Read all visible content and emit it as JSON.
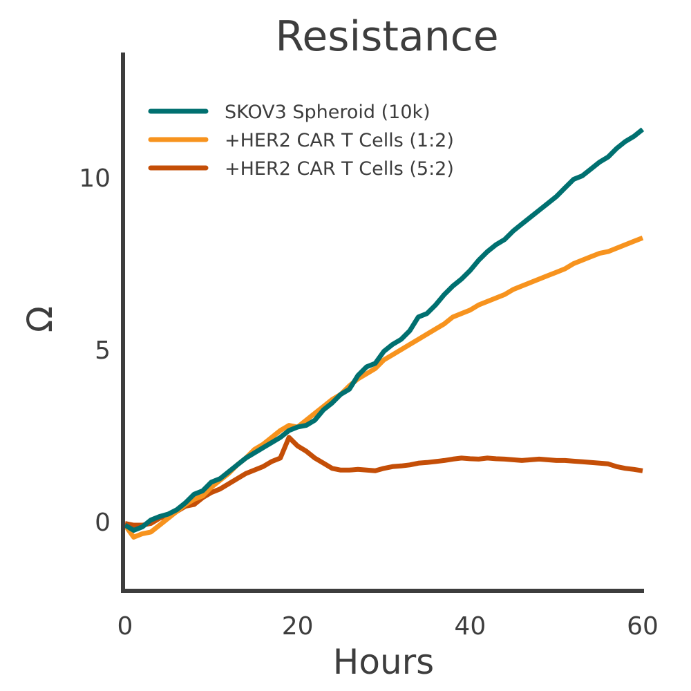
{
  "chart_data": {
    "type": "line",
    "title": "Resistance",
    "xlabel": "Hours",
    "ylabel": "Ω",
    "xlim": [
      0,
      60
    ],
    "ylim": [
      -2,
      13.6
    ],
    "xticks": [
      0,
      20,
      40,
      60
    ],
    "xtick_labels": [
      "0",
      "20",
      "40",
      "60"
    ],
    "yticks": [
      0,
      5,
      10
    ],
    "ytick_labels": [
      "0",
      "5",
      "10"
    ],
    "grid": false,
    "legend_position": "top-left",
    "x": [
      0,
      1,
      2,
      3,
      4,
      5,
      6,
      7,
      8,
      9,
      10,
      11,
      12,
      13,
      14,
      15,
      16,
      17,
      18,
      19,
      20,
      21,
      22,
      23,
      24,
      25,
      26,
      27,
      28,
      29,
      30,
      31,
      32,
      33,
      34,
      35,
      36,
      37,
      38,
      39,
      40,
      41,
      42,
      43,
      44,
      45,
      46,
      47,
      48,
      49,
      50,
      51,
      52,
      53,
      54,
      55,
      56,
      57,
      58,
      59,
      60
    ],
    "series": [
      {
        "name": "SKOV3 Spheroid (10k)",
        "color": "#007070",
        "values": [
          -0.1,
          -0.25,
          -0.15,
          0.05,
          0.15,
          0.22,
          0.35,
          0.55,
          0.8,
          0.9,
          1.15,
          1.25,
          1.45,
          1.65,
          1.85,
          2.0,
          2.15,
          2.3,
          2.45,
          2.65,
          2.75,
          2.8,
          2.95,
          3.25,
          3.45,
          3.7,
          3.85,
          4.25,
          4.5,
          4.6,
          4.95,
          5.15,
          5.3,
          5.55,
          5.95,
          6.05,
          6.3,
          6.6,
          6.85,
          7.05,
          7.3,
          7.6,
          7.85,
          8.05,
          8.2,
          8.45,
          8.65,
          8.85,
          9.05,
          9.25,
          9.45,
          9.7,
          9.95,
          10.05,
          10.25,
          10.45,
          10.6,
          10.85,
          11.05,
          11.2,
          11.4
        ]
      },
      {
        "name": "+HER2 CAR T Cells (1:2)",
        "color": "#F7931E",
        "values": [
          -0.1,
          -0.45,
          -0.35,
          -0.3,
          -0.1,
          0.1,
          0.3,
          0.5,
          0.65,
          0.75,
          1.0,
          1.2,
          1.4,
          1.65,
          1.85,
          2.1,
          2.25,
          2.45,
          2.65,
          2.8,
          2.75,
          2.95,
          3.15,
          3.35,
          3.55,
          3.7,
          3.95,
          4.15,
          4.3,
          4.45,
          4.7,
          4.85,
          5.0,
          5.15,
          5.3,
          5.45,
          5.6,
          5.75,
          5.95,
          6.05,
          6.15,
          6.3,
          6.4,
          6.5,
          6.6,
          6.75,
          6.85,
          6.95,
          7.05,
          7.15,
          7.25,
          7.35,
          7.5,
          7.6,
          7.7,
          7.8,
          7.85,
          7.95,
          8.05,
          8.15,
          8.25
        ]
      },
      {
        "name": "+HER2 CAR T Cells (5:2)",
        "color": "#C44E07",
        "values": [
          -0.05,
          -0.1,
          -0.1,
          -0.05,
          0.1,
          0.2,
          0.3,
          0.45,
          0.5,
          0.7,
          0.85,
          0.95,
          1.1,
          1.25,
          1.4,
          1.5,
          1.6,
          1.75,
          1.85,
          2.45,
          2.2,
          2.05,
          1.85,
          1.7,
          1.55,
          1.5,
          1.5,
          1.52,
          1.5,
          1.48,
          1.55,
          1.6,
          1.62,
          1.65,
          1.7,
          1.72,
          1.75,
          1.78,
          1.82,
          1.85,
          1.83,
          1.82,
          1.85,
          1.83,
          1.82,
          1.8,
          1.78,
          1.8,
          1.82,
          1.8,
          1.78,
          1.78,
          1.76,
          1.74,
          1.72,
          1.7,
          1.68,
          1.6,
          1.55,
          1.52,
          1.48
        ]
      }
    ]
  }
}
